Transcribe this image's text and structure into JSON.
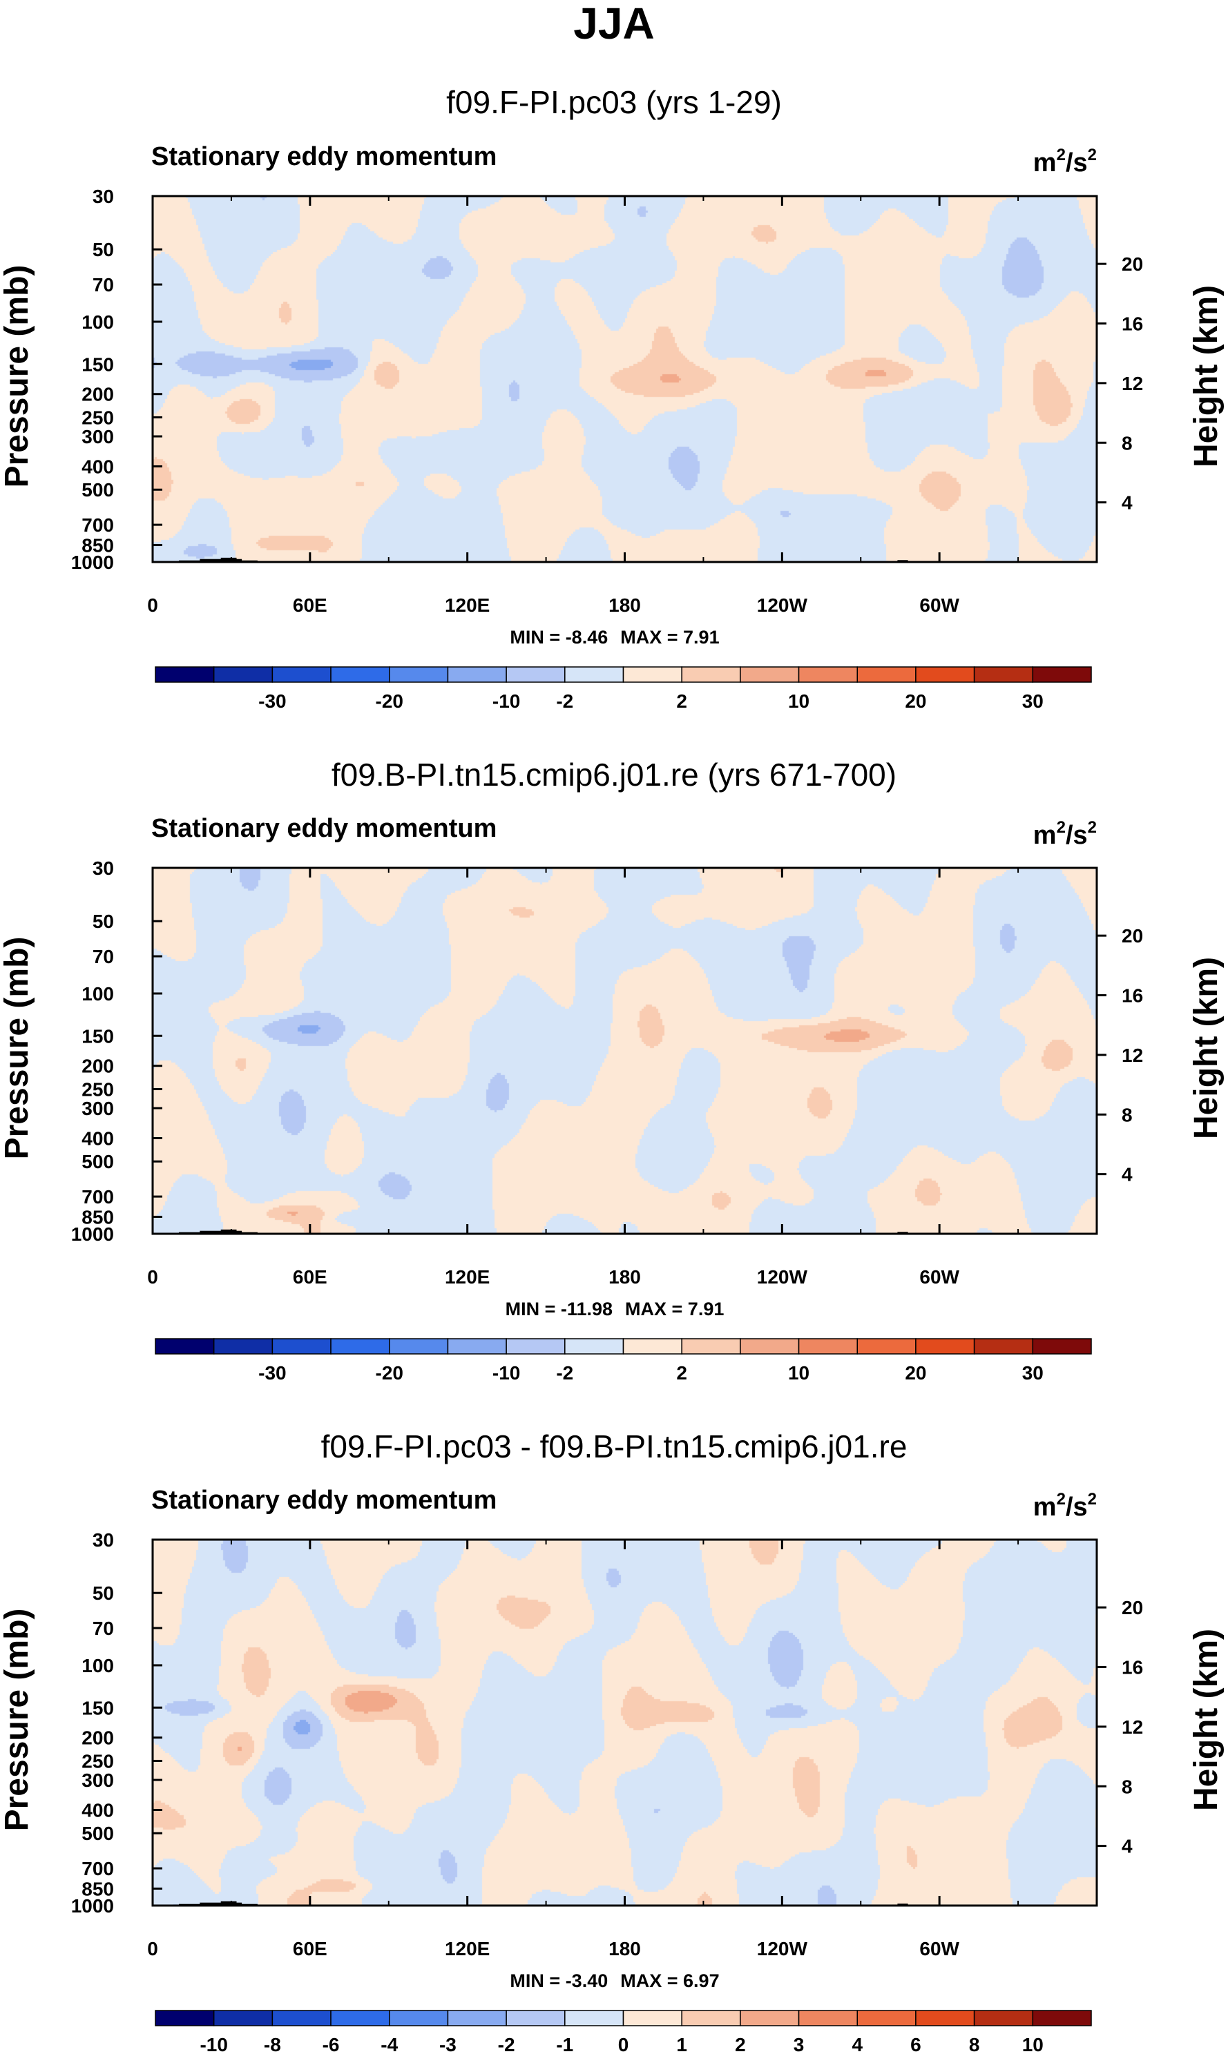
{
  "figure_title": "JJA",
  "chart_data": [
    {
      "type": "heatmap",
      "title": "f09.F-PI.pc03 (yrs 1-29)",
      "left_label": "Stationary eddy momentum",
      "units_base": "m",
      "units_exp": "2",
      "units_mid": "/s",
      "ylabel": "Pressure (mb)",
      "ylabel2": "Height (km)",
      "pressure_ticks": [
        "30",
        "50",
        "70",
        "100",
        "150",
        "200",
        "250",
        "300",
        "400",
        "500",
        "700",
        "850",
        "1000"
      ],
      "pressure_values": [
        30,
        50,
        70,
        100,
        150,
        200,
        250,
        300,
        400,
        500,
        700,
        850,
        1000
      ],
      "height_ticks": [
        "20",
        "16",
        "12",
        "8",
        "4"
      ],
      "height_values": [
        20,
        16,
        12,
        8,
        4
      ],
      "lon_ticks": [
        "0",
        "60E",
        "120E",
        "180",
        "120W",
        "60W"
      ],
      "lon_values": [
        0,
        60,
        120,
        180,
        240,
        300
      ],
      "xlim": [
        0,
        360
      ],
      "ylim": [
        1000,
        30
      ],
      "min_label": "MIN =",
      "min_value": "-8.46",
      "max_label": "MAX =",
      "max_value": "7.91",
      "colorbar_labels": [
        "-30",
        "-20",
        "-10",
        "-2",
        "2",
        "10",
        "20",
        "30"
      ],
      "features": [
        {
          "lon": 58,
          "p": 150,
          "amp": -6.0,
          "slon": 14,
          "slp": 0.1
        },
        {
          "lon": 22,
          "p": 150,
          "amp": -3.5,
          "slon": 11,
          "slp": 0.1
        },
        {
          "lon": 34,
          "p": 240,
          "amp": 4.5,
          "slon": 6,
          "slp": 0.11
        },
        {
          "lon": 88,
          "p": 160,
          "amp": 2.4,
          "slon": 5,
          "slp": 0.1
        },
        {
          "lon": 200,
          "p": 175,
          "amp": 3.8,
          "slon": 19,
          "slp": 0.12
        },
        {
          "lon": 278,
          "p": 165,
          "amp": 5.5,
          "slon": 13,
          "slp": 0.1
        },
        {
          "lon": 345,
          "p": 230,
          "amp": 2.8,
          "slon": 5,
          "slp": 0.13
        },
        {
          "lon": 52,
          "p": 830,
          "amp": 4.2,
          "slon": 7,
          "slp": 0.05
        },
        {
          "lon": 128,
          "p": 60,
          "amp": -1.6,
          "slon": 28,
          "slp": 0.15
        },
        {
          "lon": 75,
          "p": 480,
          "amp": 1.3,
          "slon": 38,
          "slp": 0.12
        },
        {
          "lon": 290,
          "p": 480,
          "amp": 1.2,
          "slon": 28,
          "slp": 0.14
        },
        {
          "lon": 150,
          "p": 400,
          "amp": -1.1,
          "slon": 34,
          "slp": 0.14
        },
        {
          "lon": 200,
          "p": 45,
          "amp": 1.2,
          "slon": 48,
          "slp": 0.12
        },
        {
          "lon": 320,
          "p": 70,
          "amp": -1.0,
          "slon": 32,
          "slp": 0.18
        },
        {
          "lon": 240,
          "p": 600,
          "amp": -1.1,
          "slon": 38,
          "slp": 0.1
        },
        {
          "lon": 18,
          "p": 900,
          "amp": -2.2,
          "slon": 5,
          "slp": 0.04
        },
        {
          "lon": 108,
          "p": 330,
          "amp": -1.3,
          "slon": 20,
          "slp": 0.12
        }
      ]
    },
    {
      "type": "heatmap",
      "title": "f09.B-PI.tn15.cmip6.j01.re (yrs 671-700)",
      "left_label": "Stationary eddy momentum",
      "units_base": "m",
      "units_exp": "2",
      "units_mid": "/s",
      "ylabel": "Pressure (mb)",
      "ylabel2": "Height (km)",
      "pressure_ticks": [
        "30",
        "50",
        "70",
        "100",
        "150",
        "200",
        "250",
        "300",
        "400",
        "500",
        "700",
        "850",
        "1000"
      ],
      "pressure_values": [
        30,
        50,
        70,
        100,
        150,
        200,
        250,
        300,
        400,
        500,
        700,
        850,
        1000
      ],
      "height_ticks": [
        "20",
        "16",
        "12",
        "8",
        "4"
      ],
      "height_values": [
        20,
        16,
        12,
        8,
        4
      ],
      "lon_ticks": [
        "0",
        "60E",
        "120E",
        "180",
        "120W",
        "60W"
      ],
      "lon_values": [
        0,
        60,
        120,
        180,
        240,
        300
      ],
      "xlim": [
        0,
        360
      ],
      "ylim": [
        1000,
        30
      ],
      "min_label": "MIN =",
      "min_value": "-11.98",
      "max_label": "MAX =",
      "max_value": "7.91",
      "colorbar_labels": [
        "-30",
        "-20",
        "-10",
        "-2",
        "2",
        "10",
        "20",
        "30"
      ],
      "features": [
        {
          "lon": 55,
          "p": 140,
          "amp": -5.5,
          "slon": 13,
          "slp": 0.11
        },
        {
          "lon": 262,
          "p": 150,
          "amp": 5.2,
          "slon": 26,
          "slp": 0.1
        },
        {
          "lon": 328,
          "p": 165,
          "amp": -2.8,
          "slon": 6,
          "slp": 0.14
        },
        {
          "lon": 346,
          "p": 185,
          "amp": 2.6,
          "slon": 4,
          "slp": 0.1
        },
        {
          "lon": 52,
          "p": 820,
          "amp": 4.0,
          "slon": 7,
          "slp": 0.05
        },
        {
          "lon": 34,
          "p": 200,
          "amp": 1.6,
          "slon": 6,
          "slp": 0.16
        },
        {
          "lon": 120,
          "p": 300,
          "amp": -1.5,
          "slon": 30,
          "slp": 0.22
        },
        {
          "lon": 240,
          "p": 60,
          "amp": -1.2,
          "slon": 36,
          "slp": 0.16
        },
        {
          "lon": 30,
          "p": 85,
          "amp": -1.0,
          "slon": 26,
          "slp": 0.14
        },
        {
          "lon": 195,
          "p": 320,
          "amp": 1.3,
          "slon": 40,
          "slp": 0.2
        },
        {
          "lon": 72,
          "p": 620,
          "amp": -1.2,
          "slon": 28,
          "slp": 0.12
        },
        {
          "lon": 180,
          "p": 45,
          "amp": 1.4,
          "slon": 40,
          "slp": 0.1
        },
        {
          "lon": 290,
          "p": 420,
          "amp": -1.1,
          "slon": 30,
          "slp": 0.16
        },
        {
          "lon": 225,
          "p": 700,
          "amp": 1.0,
          "slon": 46,
          "slp": 0.12
        },
        {
          "lon": 75,
          "p": 860,
          "amp": -2.1,
          "slon": 5,
          "slp": 0.04
        }
      ]
    },
    {
      "type": "heatmap",
      "title": "f09.F-PI.pc03 - f09.B-PI.tn15.cmip6.j01.re",
      "left_label": "Stationary eddy momentum",
      "units_base": "m",
      "units_exp": "2",
      "units_mid": "/s",
      "ylabel": "Pressure (mb)",
      "ylabel2": "Height (km)",
      "pressure_ticks": [
        "30",
        "50",
        "70",
        "100",
        "150",
        "200",
        "250",
        "300",
        "400",
        "500",
        "700",
        "850",
        "1000"
      ],
      "pressure_values": [
        30,
        50,
        70,
        100,
        150,
        200,
        250,
        300,
        400,
        500,
        700,
        850,
        1000
      ],
      "height_ticks": [
        "20",
        "16",
        "12",
        "8",
        "4"
      ],
      "height_values": [
        20,
        16,
        12,
        8,
        4
      ],
      "lon_ticks": [
        "0",
        "60E",
        "120E",
        "180",
        "120W",
        "60W"
      ],
      "lon_values": [
        0,
        60,
        120,
        180,
        240,
        300
      ],
      "xlim": [
        0,
        360
      ],
      "ylim": [
        1000,
        30
      ],
      "min_label": "MIN =",
      "min_value": "-3.40",
      "max_label": "MAX =",
      "max_value": "6.97",
      "colorbar_labels": [
        "-10",
        "-8",
        "-6",
        "-4",
        "-3",
        "-2",
        "-1",
        "0",
        "1",
        "2",
        "3",
        "4",
        "6",
        "8",
        "10"
      ],
      "features": [
        {
          "lon": 18,
          "p": 150,
          "amp": -2.8,
          "slon": 7,
          "slp": 0.06
        },
        {
          "lon": 34,
          "p": 225,
          "amp": 3.6,
          "slon": 5,
          "slp": 0.13
        },
        {
          "lon": 57,
          "p": 180,
          "amp": -3.3,
          "slon": 6,
          "slp": 0.12
        },
        {
          "lon": 84,
          "p": 140,
          "amp": 5.6,
          "slon": 10,
          "slp": 0.13
        },
        {
          "lon": 203,
          "p": 160,
          "amp": 2.5,
          "slon": 12,
          "slp": 0.09
        },
        {
          "lon": 245,
          "p": 160,
          "amp": -1.8,
          "slon": 16,
          "slp": 0.08
        },
        {
          "lon": 336,
          "p": 180,
          "amp": 1.8,
          "slon": 8,
          "slp": 0.12
        },
        {
          "lon": 355,
          "p": 160,
          "amp": -1.2,
          "slon": 4,
          "slp": 0.1
        },
        {
          "lon": 280,
          "p": 150,
          "amp": 1.5,
          "slon": 3,
          "slp": 0.07
        },
        {
          "lon": 75,
          "p": 830,
          "amp": 1.8,
          "slon": 7,
          "slp": 0.05
        },
        {
          "lon": 40,
          "p": 450,
          "amp": 1.0,
          "slon": 40,
          "slp": 0.12
        },
        {
          "lon": 150,
          "p": 60,
          "amp": 0.8,
          "slon": 30,
          "slp": 0.15
        },
        {
          "lon": 300,
          "p": 90,
          "amp": -0.6,
          "slon": 40,
          "slp": 0.2
        },
        {
          "lon": 140,
          "p": 400,
          "amp": -0.7,
          "slon": 40,
          "slp": 0.2
        },
        {
          "lon": 230,
          "p": 500,
          "amp": 0.8,
          "slon": 40,
          "slp": 0.2
        },
        {
          "lon": 40,
          "p": 720,
          "amp": -1.4,
          "slon": 6,
          "slp": 0.05
        }
      ]
    }
  ]
}
